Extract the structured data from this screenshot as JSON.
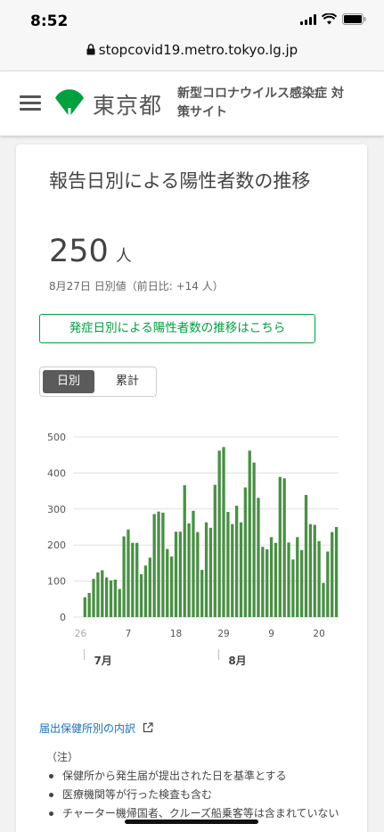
{
  "status_bar": {
    "time": "8:52"
  },
  "browser": {
    "url": "stopcovid19.metro.tokyo.lg.jp"
  },
  "header": {
    "brand": "東京都",
    "site_title": "新型コロナウイルス感染症 対策サイト"
  },
  "card": {
    "title": "報告日別による陽性者数の推移",
    "count": "250",
    "unit": "人",
    "date_info": "8月27日 日別値（前日比: +14 人）",
    "onset_link": "発症日別による陽性者数の推移はこちら",
    "toggle": {
      "daily": "日別",
      "cumulative": "累計"
    }
  },
  "colors": {
    "bar": "#4a8f45",
    "accent_green": "#00a040",
    "link": "#1a6fbd"
  },
  "chart_data": {
    "type": "bar",
    "ylim": [
      0,
      500
    ],
    "y_ticks": [
      "0",
      "100",
      "200",
      "300",
      "400",
      "500"
    ],
    "x_tick_labels": [
      "26",
      "7",
      "18",
      "29",
      "9",
      "20"
    ],
    "month_labels": [
      "7月",
      "8月"
    ],
    "series": [
      {
        "values": [
          55,
          67,
          106,
          124,
          130,
          110,
          102,
          104,
          78,
          224,
          243,
          206,
          206,
          119,
          143,
          165,
          286,
          293,
          290,
          189,
          168,
          237,
          237,
          366,
          260,
          295,
          236,
          131,
          263,
          248,
          367,
          462,
          472,
          292,
          258,
          309,
          263,
          360,
          462,
          429,
          331,
          195,
          188,
          222,
          206,
          389,
          385,
          207,
          160,
          222,
          186,
          339,
          258,
          256,
          211,
          95,
          182,
          236,
          250
        ]
      }
    ]
  },
  "footer": {
    "breakdown_link": "届出保健所別の内訳",
    "notes_header": "（注）",
    "notes": [
      "保健所から発生届が提出された日を基準とする",
      "医療機関等が行った検査も含む",
      "チャーター機帰国者、クルーズ船乗客等は含まれていない"
    ]
  }
}
